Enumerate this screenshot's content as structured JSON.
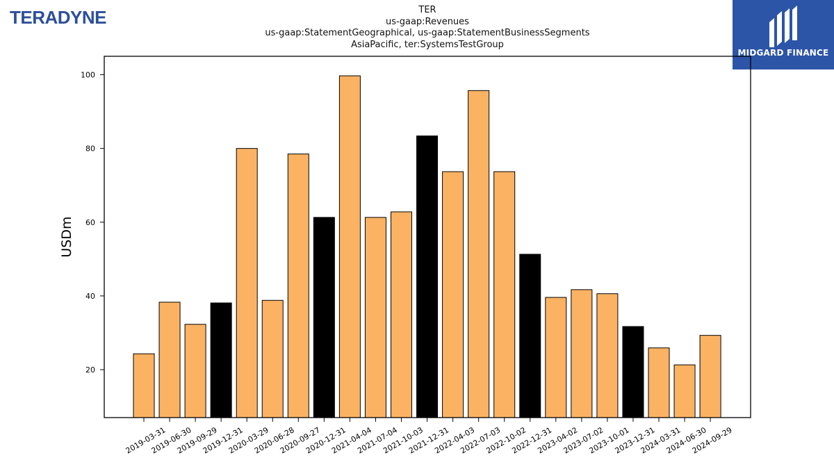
{
  "header": {
    "company_logo_text": "TERADYNE",
    "brand_logo_text": "MIDGARD FINANCE"
  },
  "colors": {
    "bar_regular": "#fbb363",
    "bar_highlight": "#000000",
    "logo_blue": "#2d4f9a",
    "brand_bg": "#2c55a8"
  },
  "chart_data": {
    "type": "bar",
    "title_lines": [
      "TER",
      "us-gaap:Revenues",
      "us-gaap:StatementGeographical, us-gaap:StatementBusinessSegments",
      "AsiaPacific, ter:SystemsTestGroup"
    ],
    "ylabel": "USDm",
    "xlabel": "",
    "ylim": [
      7,
      105
    ],
    "yticks": [
      20,
      40,
      60,
      80,
      100
    ],
    "categories": [
      "2019-03-31",
      "2019-06-30",
      "2019-09-29",
      "2019-12-31",
      "2020-03-29",
      "2020-06-28",
      "2020-09-27",
      "2020-12-31",
      "2021-04-04",
      "2021-07-04",
      "2021-10-03",
      "2021-12-31",
      "2022-04-03",
      "2022-07-03",
      "2022-10-02",
      "2022-12-31",
      "2023-04-02",
      "2023-07-02",
      "2023-10-01",
      "2023-12-31",
      "2024-03-31",
      "2024-06-30",
      "2024-09-29"
    ],
    "values": [
      24.3,
      38.3,
      32.3,
      38.1,
      80.0,
      38.8,
      78.5,
      61.3,
      99.7,
      61.3,
      62.8,
      83.4,
      73.7,
      95.7,
      73.7,
      51.3,
      39.6,
      41.7,
      40.6,
      31.7,
      25.9,
      21.3,
      29.3
    ],
    "highlight_year_end": [
      false,
      false,
      false,
      true,
      false,
      false,
      false,
      true,
      false,
      false,
      false,
      true,
      false,
      false,
      false,
      true,
      false,
      false,
      false,
      true,
      false,
      false,
      false
    ],
    "grid": false,
    "legend": "none"
  }
}
